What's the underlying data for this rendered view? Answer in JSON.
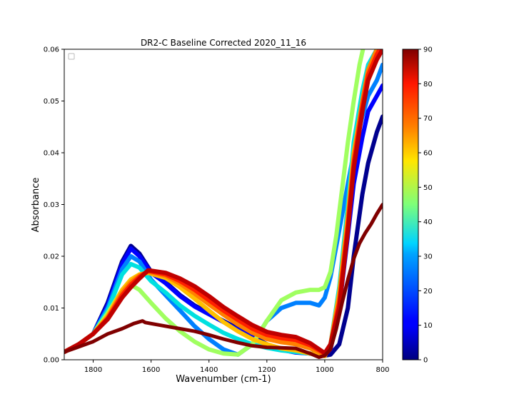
{
  "chart_data": {
    "type": "line",
    "title": "DR2-C Baseline Corrected 2020_11_16",
    "xlabel": "Wavenumber (cm-1)",
    "ylabel": "Absorbance",
    "xlim": [
      1900,
      800
    ],
    "ylim": [
      0,
      0.06
    ],
    "x_reversed": true,
    "x_ticks": [
      1800,
      1600,
      1400,
      1200,
      1000,
      800
    ],
    "y_ticks": [
      0.0,
      0.01,
      0.02,
      0.03,
      0.04,
      0.05,
      0.06
    ],
    "grid": false,
    "legend": "top-left (empty)",
    "colormap": "jet",
    "colorbar": {
      "min": 0,
      "max": 90,
      "ticks": [
        0,
        10,
        20,
        30,
        40,
        50,
        60,
        70,
        80,
        90
      ]
    },
    "series": [
      {
        "color_value": 3,
        "color": "#00008f",
        "x": [
          1900,
          1850,
          1800,
          1750,
          1700,
          1670,
          1640,
          1600,
          1550,
          1500,
          1450,
          1400,
          1350,
          1300,
          1250,
          1200,
          1150,
          1100,
          1050,
          1000,
          980,
          950,
          920,
          900,
          870,
          850,
          820,
          800
        ],
        "y": [
          0.0015,
          0.003,
          0.005,
          0.011,
          0.019,
          0.022,
          0.0205,
          0.017,
          0.015,
          0.0125,
          0.0105,
          0.009,
          0.0075,
          0.006,
          0.0045,
          0.003,
          0.002,
          0.0015,
          0.0012,
          0.0008,
          0.001,
          0.003,
          0.01,
          0.02,
          0.032,
          0.038,
          0.044,
          0.047
        ]
      },
      {
        "color_value": 8,
        "color": "#0000ff",
        "x": [
          1900,
          1850,
          1800,
          1750,
          1700,
          1670,
          1640,
          1600,
          1550,
          1500,
          1450,
          1400,
          1350,
          1300,
          1250,
          1200,
          1150,
          1100,
          1050,
          1000,
          980,
          950,
          920,
          900,
          870,
          850,
          820,
          800
        ],
        "y": [
          0.0015,
          0.003,
          0.005,
          0.0105,
          0.0185,
          0.0215,
          0.02,
          0.0168,
          0.0148,
          0.0123,
          0.0103,
          0.0088,
          0.0073,
          0.0058,
          0.0043,
          0.0028,
          0.0019,
          0.0014,
          0.0012,
          0.0009,
          0.002,
          0.01,
          0.024,
          0.034,
          0.043,
          0.048,
          0.051,
          0.053
        ]
      },
      {
        "color_value": 20,
        "color": "#0080ff",
        "x": [
          1900,
          1850,
          1800,
          1750,
          1700,
          1670,
          1640,
          1600,
          1550,
          1500,
          1450,
          1400,
          1350,
          1300,
          1250,
          1200,
          1150,
          1100,
          1050,
          1020,
          1000,
          980,
          950,
          920,
          900,
          870,
          850,
          820,
          800
        ],
        "y": [
          0.0015,
          0.003,
          0.005,
          0.01,
          0.0175,
          0.02,
          0.019,
          0.0155,
          0.0125,
          0.0095,
          0.0065,
          0.004,
          0.002,
          0.001,
          0.003,
          0.0075,
          0.01,
          0.011,
          0.011,
          0.0105,
          0.012,
          0.016,
          0.025,
          0.034,
          0.04,
          0.047,
          0.051,
          0.054,
          0.057
        ]
      },
      {
        "color_value": 35,
        "color": "#00e0e0",
        "x": [
          1900,
          1850,
          1800,
          1750,
          1700,
          1670,
          1640,
          1600,
          1550,
          1500,
          1450,
          1400,
          1350,
          1300,
          1250,
          1200,
          1150,
          1100,
          1050,
          1000,
          980,
          950,
          920,
          900,
          870,
          850,
          820,
          800
        ],
        "y": [
          0.0015,
          0.003,
          0.005,
          0.0095,
          0.0165,
          0.0185,
          0.0178,
          0.0152,
          0.013,
          0.0105,
          0.0085,
          0.0068,
          0.0052,
          0.004,
          0.003,
          0.0023,
          0.0018,
          0.0015,
          0.0012,
          0.0008,
          0.003,
          0.014,
          0.03,
          0.042,
          0.052,
          0.057,
          0.06,
          0.061
        ]
      },
      {
        "color_value": 50,
        "color": "#a0ff60",
        "x": [
          1900,
          1850,
          1800,
          1750,
          1700,
          1670,
          1640,
          1600,
          1550,
          1500,
          1450,
          1400,
          1350,
          1300,
          1250,
          1200,
          1150,
          1100,
          1050,
          1020,
          1000,
          980,
          960,
          940,
          920,
          900,
          880,
          860,
          840,
          800
        ],
        "y": [
          0.0015,
          0.003,
          0.005,
          0.009,
          0.0135,
          0.0145,
          0.0135,
          0.011,
          0.008,
          0.0055,
          0.0035,
          0.002,
          0.0012,
          0.001,
          0.003,
          0.0075,
          0.0115,
          0.013,
          0.0135,
          0.0135,
          0.014,
          0.017,
          0.024,
          0.033,
          0.042,
          0.05,
          0.057,
          0.062,
          0.065,
          0.068
        ]
      },
      {
        "color_value": 62,
        "color": "#ffc000",
        "x": [
          1900,
          1850,
          1800,
          1750,
          1700,
          1670,
          1640,
          1610,
          1550,
          1500,
          1450,
          1400,
          1350,
          1300,
          1250,
          1200,
          1150,
          1100,
          1050,
          1000,
          980,
          950,
          920,
          900,
          870,
          850,
          820,
          800
        ],
        "y": [
          0.0015,
          0.003,
          0.005,
          0.0085,
          0.0135,
          0.0155,
          0.0165,
          0.0168,
          0.0158,
          0.014,
          0.0118,
          0.0095,
          0.0073,
          0.0055,
          0.004,
          0.003,
          0.0022,
          0.0018,
          0.0012,
          0.0007,
          0.003,
          0.013,
          0.028,
          0.04,
          0.05,
          0.056,
          0.06,
          0.062
        ]
      },
      {
        "color_value": 72,
        "color": "#ff8000",
        "x": [
          1900,
          1850,
          1800,
          1750,
          1700,
          1670,
          1640,
          1610,
          1550,
          1500,
          1450,
          1400,
          1350,
          1300,
          1250,
          1200,
          1150,
          1100,
          1050,
          1000,
          980,
          950,
          920,
          900,
          870,
          850,
          820,
          800
        ],
        "y": [
          0.0015,
          0.003,
          0.005,
          0.0082,
          0.013,
          0.015,
          0.0163,
          0.017,
          0.0162,
          0.0147,
          0.0128,
          0.0107,
          0.0087,
          0.0068,
          0.0052,
          0.004,
          0.0034,
          0.003,
          0.0022,
          0.001,
          0.003,
          0.012,
          0.027,
          0.039,
          0.05,
          0.056,
          0.06,
          0.062
        ]
      },
      {
        "color_value": 80,
        "color": "#ff2000",
        "x": [
          1900,
          1850,
          1800,
          1750,
          1700,
          1670,
          1640,
          1610,
          1550,
          1500,
          1450,
          1400,
          1350,
          1300,
          1250,
          1200,
          1150,
          1100,
          1050,
          1000,
          980,
          950,
          920,
          900,
          870,
          850,
          820,
          800
        ],
        "y": [
          0.0015,
          0.003,
          0.005,
          0.008,
          0.0125,
          0.0145,
          0.016,
          0.0172,
          0.0165,
          0.0152,
          0.0135,
          0.0115,
          0.0095,
          0.0077,
          0.006,
          0.0048,
          0.0042,
          0.0038,
          0.0028,
          0.0012,
          0.003,
          0.011,
          0.026,
          0.038,
          0.049,
          0.055,
          0.059,
          0.061
        ]
      },
      {
        "color_value": 86,
        "color": "#c00000",
        "x": [
          1900,
          1850,
          1800,
          1750,
          1700,
          1670,
          1640,
          1610,
          1550,
          1500,
          1450,
          1400,
          1350,
          1300,
          1250,
          1200,
          1150,
          1100,
          1050,
          1000,
          980,
          950,
          920,
          900,
          870,
          850,
          820,
          800
        ],
        "y": [
          0.0015,
          0.003,
          0.005,
          0.0078,
          0.012,
          0.014,
          0.0157,
          0.0173,
          0.0168,
          0.0157,
          0.0142,
          0.0123,
          0.0102,
          0.0084,
          0.0067,
          0.0054,
          0.0048,
          0.0044,
          0.0032,
          0.0013,
          0.003,
          0.01,
          0.025,
          0.037,
          0.048,
          0.054,
          0.058,
          0.06
        ]
      },
      {
        "color_value": 90,
        "color": "#800000",
        "x": [
          1900,
          1850,
          1800,
          1750,
          1700,
          1660,
          1630,
          1620,
          1600,
          1550,
          1500,
          1450,
          1400,
          1350,
          1300,
          1250,
          1200,
          1150,
          1100,
          1050,
          1020,
          1000,
          980,
          960,
          940,
          920,
          900,
          880,
          860,
          840,
          820,
          800
        ],
        "y": [
          0.0015,
          0.0025,
          0.0035,
          0.005,
          0.006,
          0.007,
          0.0075,
          0.0072,
          0.007,
          0.0065,
          0.006,
          0.0055,
          0.0048,
          0.004,
          0.0033,
          0.0027,
          0.0024,
          0.0023,
          0.0022,
          0.0012,
          0.0005,
          0.0008,
          0.002,
          0.006,
          0.011,
          0.0155,
          0.0195,
          0.0225,
          0.0245,
          0.0262,
          0.0282,
          0.03
        ]
      }
    ]
  }
}
